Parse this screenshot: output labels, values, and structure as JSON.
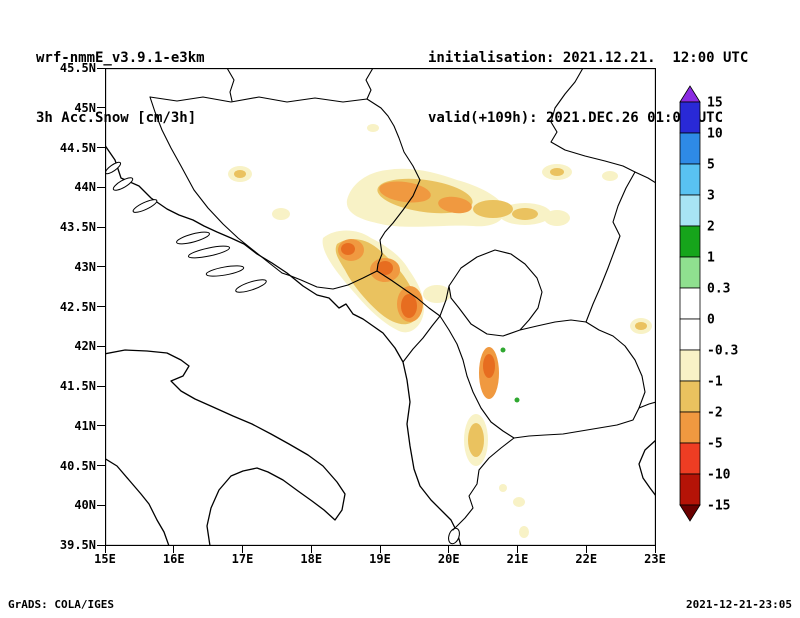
{
  "header": {
    "model_line": "wrf-nmmE_v3.9.1-e3km",
    "field_line": "3h Acc.Snow [cm/3h]",
    "init_line": "initialisation: 2021.12.21.  12:00 UTC",
    "valid_line": "valid(+109h): 2021.DEC.26 01:00 UTC"
  },
  "footer": {
    "left": "GrADS: COLA/IGES",
    "right": "2021-12-21-23:05"
  },
  "map": {
    "y_ticks": [
      "45.5N",
      "45N",
      "44.5N",
      "44N",
      "43.5N",
      "43N",
      "42.5N",
      "42N",
      "41.5N",
      "41N",
      "40.5N",
      "40N",
      "39.5N"
    ],
    "x_ticks": [
      "15E",
      "16E",
      "17E",
      "18E",
      "19E",
      "20E",
      "21E",
      "22E",
      "23E"
    ],
    "region": "Adriatic / Balkans"
  },
  "colorbar": {
    "units": "cm/3h",
    "levels": [
      "15",
      "10",
      "5",
      "3",
      "2",
      "1",
      "0.3",
      "0",
      "-0.3",
      "-1",
      "-2",
      "-5",
      "-10",
      "-15"
    ],
    "arrow_top_color": "#8a2be2",
    "arrow_bottom_color": "#6b0000",
    "segment_colors": [
      "#2929d6",
      "#2e8ae6",
      "#59c2f2",
      "#a8e4f5",
      "#16a51b",
      "#8fe08f",
      "#ffffff",
      "#ffffff",
      "#f8f2c6",
      "#eac25f",
      "#f09940",
      "#ee3d23",
      "#b51307"
    ]
  },
  "colors": {
    "snow-pale": "#f8f2c6",
    "snow-gold": "#eac25f",
    "snow-orange": "#f09940",
    "snow-deep": "#e76d20",
    "speck-green": "#2fa830",
    "line": "#000000"
  }
}
